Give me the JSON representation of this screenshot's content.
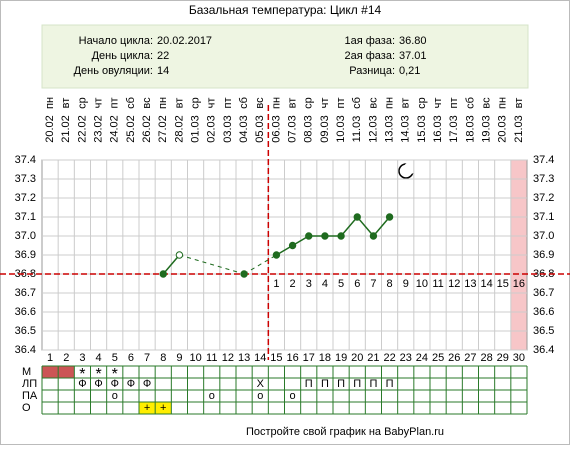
{
  "chart_data": {
    "type": "line",
    "title": "Базальная температура: Цикл #14",
    "info_left": [
      {
        "label": "Начало цикла:",
        "value": "20.02.2017"
      },
      {
        "label": "День цикла:",
        "value": "22"
      },
      {
        "label": "День овуляции:",
        "value": "14"
      }
    ],
    "info_right": [
      {
        "label": "1ая фаза:",
        "value": "36.80"
      },
      {
        "label": "2ая фаза:",
        "value": "37.01"
      },
      {
        "label": "Разница:",
        "value": "0,21"
      }
    ],
    "x": [
      1,
      2,
      3,
      4,
      5,
      6,
      7,
      8,
      9,
      10,
      11,
      12,
      13,
      14,
      15,
      16,
      17,
      18,
      19,
      20,
      21,
      22,
      23,
      24,
      25,
      26,
      27,
      28,
      29,
      30
    ],
    "weekdays": [
      "пн",
      "вт",
      "ср",
      "чт",
      "пт",
      "сб",
      "вс",
      "пн",
      "вт",
      "ср",
      "чт",
      "пт",
      "сб",
      "вс",
      "пн",
      "вт",
      "ср",
      "чт",
      "пт",
      "сб",
      "вс",
      "пн",
      "вт",
      "ср",
      "чт",
      "пт",
      "сб",
      "вс",
      "пн",
      "вт"
    ],
    "dates": [
      "20.02",
      "21.02",
      "22.02",
      "23.02",
      "24.02",
      "25.02",
      "26.02",
      "27.02",
      "28.02",
      "01.03",
      "02.03",
      "03.03",
      "04.03",
      "05.03",
      "06.03",
      "07.03",
      "08.03",
      "09.03",
      "10.03",
      "11.03",
      "12.03",
      "13.03",
      "14.03",
      "15.03",
      "16.03",
      "17.03",
      "18.03",
      "19.03",
      "20.03",
      "21.03"
    ],
    "series": [
      {
        "name": "Температура",
        "color": "#1f6b1f",
        "values": [
          null,
          null,
          null,
          null,
          null,
          null,
          null,
          36.8,
          36.9,
          null,
          null,
          null,
          36.8,
          null,
          36.9,
          36.95,
          37.0,
          37.0,
          37.0,
          37.1,
          37.0,
          37.1,
          null,
          null,
          null,
          null,
          null,
          null,
          null,
          null
        ]
      }
    ],
    "hollow_days": [
      9
    ],
    "ylim": [
      36.4,
      37.4
    ],
    "yticks": [
      36.4,
      36.5,
      36.6,
      36.7,
      36.8,
      36.9,
      {
        "value": 37,
        "label": "37.0"
      },
      37.1,
      37.2,
      37.3,
      37.4
    ],
    "grid": true,
    "coverline": 36.8,
    "ovulation_day": 14,
    "shaded_days": [
      30
    ],
    "luteal_days": [
      1,
      2,
      3,
      4,
      5,
      6,
      7,
      8,
      9,
      10,
      11,
      12,
      13,
      14,
      15,
      16
    ],
    "table": [
      {
        "label": "М",
        "filled": [
          1,
          2
        ],
        "fill_color": "#cc5555",
        "marks": [
          {
            "day": 3,
            "text": "*"
          },
          {
            "day": 4,
            "text": "*"
          },
          {
            "day": 5,
            "text": "*"
          }
        ]
      },
      {
        "label": "ЛП",
        "marks": [
          {
            "day": 3,
            "text": "Ф"
          },
          {
            "day": 4,
            "text": "Ф"
          },
          {
            "day": 5,
            "text": "Ф"
          },
          {
            "day": 6,
            "text": "Ф"
          },
          {
            "day": 7,
            "text": "Ф"
          },
          {
            "day": 14,
            "text": "Х"
          },
          {
            "day": 17,
            "text": "П"
          },
          {
            "day": 18,
            "text": "П"
          },
          {
            "day": 19,
            "text": "П"
          },
          {
            "day": 20,
            "text": "П"
          },
          {
            "day": 21,
            "text": "П"
          },
          {
            "day": 22,
            "text": "П"
          }
        ]
      },
      {
        "label": "ПА",
        "marks": [
          {
            "day": 5,
            "text": "o"
          },
          {
            "day": 11,
            "text": "o"
          },
          {
            "day": 14,
            "text": "o"
          },
          {
            "day": 16,
            "text": "o"
          }
        ]
      },
      {
        "label": "О",
        "filled": [
          7,
          8
        ],
        "fill_color": "#ffee00",
        "marks": [
          {
            "day": 7,
            "text": "+"
          },
          {
            "day": 8,
            "text": "+"
          }
        ]
      }
    ],
    "footer": "Постройте свой график на BabyPlan.ru"
  }
}
